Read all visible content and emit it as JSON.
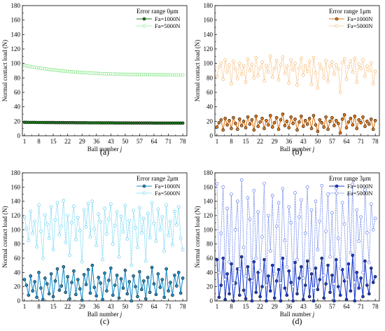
{
  "chart_data": [
    {
      "id": "a",
      "type": "line",
      "panel_label": "(a)",
      "legend_title": "Error range  0μm",
      "xlabel": "Ball number",
      "xlabel_italic": "j",
      "ylabel": "Normal contact load (N)",
      "xticks": [
        1,
        8,
        15,
        22,
        29,
        36,
        43,
        50,
        57,
        64,
        71,
        78
      ],
      "yticks": [
        0,
        20,
        40,
        60,
        80,
        100,
        120,
        140,
        160,
        180
      ],
      "xlim": [
        0,
        80
      ],
      "ylim": [
        0,
        180
      ],
      "grid": false,
      "legend_position": "top-right",
      "colors": {
        "s1": "#1e7a1e",
        "s2": "#5fe05f"
      },
      "series": [
        {
          "name": "Fa=1000N",
          "style": "solid",
          "marker": "filled",
          "values": [
            18.6,
            18.6,
            18.5,
            18.5,
            18.5,
            18.5,
            18.4,
            18.4,
            18.4,
            18.4,
            18.3,
            18.3,
            18.3,
            18.3,
            18.3,
            18.2,
            18.2,
            18.2,
            18.2,
            18.2,
            18.1,
            18.1,
            18.1,
            18.1,
            18.1,
            18.0,
            18.0,
            18.0,
            18.0,
            18.0,
            18.0,
            17.9,
            17.9,
            17.9,
            17.9,
            17.9,
            17.9,
            17.8,
            17.8,
            17.8,
            17.8,
            17.8,
            17.8,
            17.8,
            17.7,
            17.7,
            17.7,
            17.7,
            17.7,
            17.7,
            17.7,
            17.7,
            17.6,
            17.6,
            17.6,
            17.6,
            17.6,
            17.6,
            17.6,
            17.6,
            17.6,
            17.6,
            17.6,
            17.5,
            17.5,
            17.5,
            17.5,
            17.5,
            17.5,
            17.5,
            17.5,
            17.5,
            17.5,
            17.5,
            17.5,
            17.5,
            17.5,
            17.5
          ]
        },
        {
          "name": "Fa=5000N",
          "style": "dotted",
          "marker": "open",
          "values": [
            97.2,
            96.6,
            96.1,
            95.6,
            95.1,
            94.6,
            94.2,
            93.7,
            93.3,
            92.9,
            92.5,
            92.1,
            91.7,
            91.4,
            91.0,
            90.7,
            90.4,
            90.1,
            89.8,
            89.5,
            89.2,
            89.0,
            88.7,
            88.5,
            88.3,
            88.1,
            87.8,
            87.6,
            87.4,
            87.3,
            87.1,
            86.9,
            86.7,
            86.6,
            86.4,
            86.3,
            86.2,
            86.0,
            85.9,
            85.8,
            85.7,
            85.6,
            85.5,
            85.4,
            85.3,
            85.2,
            85.2,
            85.1,
            85.0,
            85.0,
            84.9,
            84.8,
            84.8,
            84.7,
            84.7,
            84.6,
            84.6,
            84.6,
            84.5,
            84.5,
            84.5,
            84.4,
            84.4,
            84.4,
            84.4,
            84.3,
            84.3,
            84.3,
            84.3,
            84.3,
            84.3,
            84.2,
            84.2,
            84.2,
            84.2,
            84.2,
            84.2,
            84.2
          ]
        }
      ]
    },
    {
      "id": "b",
      "type": "line",
      "panel_label": "(b)",
      "legend_title": "Error range 1μm",
      "xlabel": "Ball number",
      "xlabel_italic": "j",
      "ylabel": "Normal contact load (N)",
      "xticks": [
        1,
        8,
        15,
        22,
        29,
        36,
        43,
        50,
        57,
        64,
        71,
        78
      ],
      "yticks": [
        0,
        20,
        40,
        60,
        80,
        100,
        120,
        140,
        160,
        180
      ],
      "xlim": [
        0,
        80
      ],
      "ylim": [
        0,
        180
      ],
      "grid": false,
      "legend_position": "top-right",
      "colors": {
        "s1": "#e07818",
        "s2": "#f5a850"
      },
      "series": [
        {
          "name": "Fa=1000N",
          "style": "solid",
          "marker": "filled",
          "values": [
            12,
            18,
            22,
            8,
            24,
            15,
            21,
            10,
            25,
            17,
            9,
            23,
            14,
            20,
            11,
            26,
            16,
            22,
            8,
            27,
            13,
            19,
            24,
            10,
            21,
            15,
            28,
            12,
            18,
            25,
            9,
            22,
            30,
            14,
            20,
            11,
            26,
            17,
            23,
            8,
            19,
            27,
            13,
            21,
            16,
            24,
            10,
            28,
            15,
            6,
            22,
            18,
            12,
            26,
            9,
            20,
            25,
            14,
            21,
            17,
            4,
            23,
            29,
            11,
            19,
            24,
            15,
            27,
            10,
            22,
            18,
            26,
            13,
            20,
            16,
            23,
            9,
            21
          ]
        },
        {
          "name": "Fa=5000N",
          "style": "dotted",
          "marker": "open",
          "values": [
            82,
            95,
            101,
            78,
            105,
            88,
            98,
            72,
            103,
            92,
            79,
            100,
            85,
            97,
            74,
            106,
            90,
            99,
            80,
            108,
            83,
            94,
            102,
            76,
            97,
            88,
            110,
            81,
            93,
            104,
            77,
            98,
            109,
            86,
            96,
            73,
            105,
            91,
            100,
            70,
            94,
            107,
            84,
            97,
            89,
            103,
            71,
            108,
            87,
            66,
            99,
            93,
            80,
            104,
            75,
            96,
            102,
            85,
            98,
            92,
            60,
            101,
            106,
            78,
            95,
            103,
            88,
            107,
            74,
            99,
            93,
            105,
            82,
            96,
            90,
            101,
            72,
            89
          ]
        }
      ]
    },
    {
      "id": "c",
      "type": "line",
      "panel_label": "(c)",
      "legend_title": "Error range 2μm",
      "xlabel": "Ball number",
      "xlabel_italic": "j",
      "ylabel": "Normal contact load (N)",
      "xticks": [
        1,
        8,
        15,
        22,
        29,
        36,
        43,
        50,
        57,
        64,
        71,
        78
      ],
      "yticks": [
        0,
        20,
        40,
        60,
        80,
        100,
        120,
        140,
        160,
        180
      ],
      "xlim": [
        0,
        80
      ],
      "ylim": [
        0,
        180
      ],
      "grid": false,
      "legend_position": "top-right",
      "colors": {
        "s1": "#1e90c8",
        "s2": "#48c8f0"
      },
      "series": [
        {
          "name": "Fa=1000N",
          "style": "solid",
          "marker": "filled",
          "values": [
            30,
            22,
            8,
            35,
            14,
            27,
            5,
            40,
            18,
            2,
            32,
            24,
            10,
            38,
            6,
            28,
            45,
            15,
            21,
            48,
            12,
            34,
            3,
            26,
            42,
            9,
            30,
            17,
            1,
            37,
            23,
            44,
            11,
            50,
            19,
            7,
            33,
            25,
            2,
            39,
            14,
            29,
            46,
            8,
            22,
            36,
            4,
            31,
            18,
            43,
            10,
            27,
            0,
            35,
            20,
            6,
            41,
            16,
            28,
            3,
            33,
            12,
            47,
            24,
            9,
            38,
            19,
            30,
            5,
            45,
            14,
            26,
            8,
            36,
            21,
            40,
            11,
            32
          ]
        },
        {
          "name": "Fa=5000N",
          "style": "dotted",
          "marker": "open",
          "values": [
            118,
            102,
            85,
            126,
            95,
            112,
            76,
            135,
            98,
            60,
            121,
            108,
            88,
            132,
            72,
            114,
            138,
            93,
            105,
            141,
            82,
            120,
            64,
            110,
            133,
            86,
            117,
            99,
            55,
            128,
            104,
            137,
            90,
            140,
            101,
            78,
            122,
            111,
            58,
            130,
            94,
            115,
            136,
            80,
            106,
            125,
            62,
            119,
            97,
            134,
            87,
            113,
            50,
            127,
            103,
            75,
            131,
            96,
            116,
            56,
            123,
            89,
            138,
            109,
            84,
            129,
            100,
            118,
            70,
            135,
            92,
            112,
            79,
            126,
            107,
            132,
            88,
            72
          ]
        }
      ]
    },
    {
      "id": "d",
      "type": "line",
      "panel_label": "(d)",
      "legend_title": "Error range 3μm",
      "xlabel": "Ball number",
      "xlabel_italic": "j",
      "ylabel": "Normal contact load (N)",
      "xticks": [
        1,
        8,
        15,
        22,
        29,
        36,
        43,
        50,
        57,
        64,
        71,
        78
      ],
      "yticks": [
        0,
        20,
        40,
        60,
        80,
        100,
        120,
        140,
        160,
        180
      ],
      "xlim": [
        0,
        80
      ],
      "ylim": [
        0,
        180
      ],
      "grid": false,
      "legend_position": "top-right",
      "colors": {
        "s1": "#1c3ccf",
        "s2": "#4a6ae6"
      },
      "series": [
        {
          "name": "Fa=1000N",
          "style": "solid",
          "marker": "filled",
          "values": [
            58,
            5,
            22,
            60,
            2,
            38,
            10,
            52,
            0,
            25,
            45,
            8,
            62,
            15,
            3,
            48,
            30,
            0,
            55,
            12,
            40,
            6,
            20,
            58,
            0,
            35,
            14,
            50,
            4,
            28,
            44,
            0,
            60,
            18,
            8,
            42,
            26,
            0,
            54,
            10,
            32,
            48,
            2,
            22,
            56,
            6,
            38,
            0,
            46,
            16,
            30,
            60,
            4,
            24,
            50,
            12,
            36,
            0,
            58,
            20,
            8,
            44,
            28,
            2,
            52,
            14,
            64,
            0,
            40,
            18,
            32,
            6,
            56,
            22,
            10,
            46,
            26,
            34
          ]
        },
        {
          "name": "Fa=5000N",
          "style": "dotted",
          "marker": "open",
          "values": [
            165,
            40,
            95,
            160,
            30,
            130,
            55,
            150,
            25,
            100,
            140,
            45,
            170,
            75,
            35,
            145,
            115,
            28,
            155,
            60,
            125,
            42,
            90,
            165,
            22,
            120,
            70,
            148,
            38,
            105,
            138,
            25,
            158,
            85,
            48,
            132,
            110,
            20,
            152,
            58,
            118,
            142,
            32,
            95,
            160,
            44,
            128,
            18,
            140,
            72,
            112,
            162,
            36,
            98,
            150,
            62,
            124,
            24,
            158,
            88,
            46,
            138,
            108,
            30,
            150,
            68,
            164,
            26,
            128,
            84,
            118,
            40,
            156,
            96,
            54,
            136,
            100,
            116
          ]
        }
      ]
    }
  ]
}
